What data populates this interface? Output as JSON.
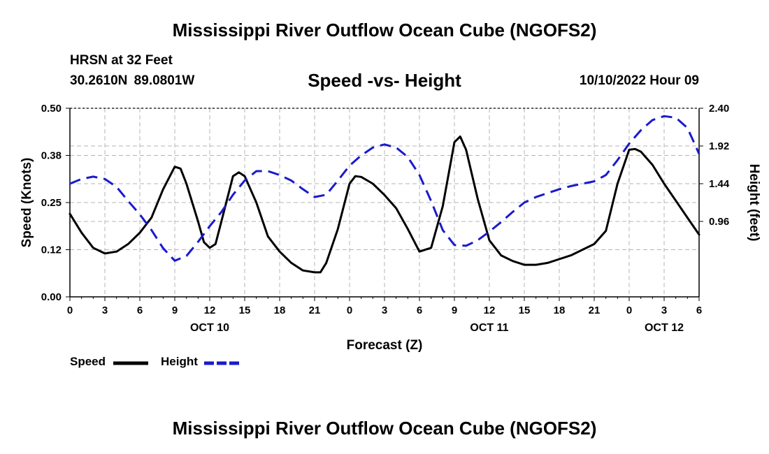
{
  "header": {
    "title": "Mississippi River Outflow Ocean Cube (NGOFS2)",
    "station": "HRSN at 32 Feet",
    "coords": "30.2610N  89.0801W",
    "subtitle": "Speed -vs- Height",
    "run_time": "10/10/2022 Hour 09"
  },
  "footer": {
    "title": "Mississippi River Outflow Ocean Cube (NGOFS2)"
  },
  "legend": {
    "speed": "Speed",
    "height": "Height"
  },
  "colors": {
    "speed": "#000000",
    "height": "#1a1acc",
    "grid": "#b4b4b4"
  },
  "chart_data": {
    "type": "line",
    "xlabel": "Forecast (Z)",
    "ylabel": "Speed (Knots)",
    "y2label": "Height (feet)",
    "xlim": [
      0,
      54
    ],
    "ylim": [
      0,
      0.5
    ],
    "y2lim": [
      0,
      2.4
    ],
    "x_ticks": [
      0,
      3,
      6,
      9,
      12,
      15,
      18,
      21,
      24,
      27,
      30,
      33,
      36,
      39,
      42,
      45,
      48,
      51,
      54
    ],
    "x_tick_labels": [
      "0",
      "3",
      "6",
      "9",
      "12",
      "15",
      "18",
      "21",
      "0",
      "3",
      "6",
      "9",
      "12",
      "15",
      "18",
      "21",
      "0",
      "3",
      "6"
    ],
    "y_ticks": [
      0,
      0.125,
      0.25,
      0.375,
      0.5
    ],
    "y_tick_labels": [
      "0.00",
      "0.12",
      "0.25",
      "0.38",
      "0.50"
    ],
    "y2_ticks": [
      0.96,
      1.44,
      1.92,
      2.4
    ],
    "y2_tick_labels": [
      "0.96",
      "1.44",
      "1.92",
      "2.40"
    ],
    "day_labels": [
      {
        "x": 12,
        "label": "OCT 10"
      },
      {
        "x": 36,
        "label": "OCT 11"
      },
      {
        "x": 51,
        "label": "OCT 12"
      }
    ],
    "series": [
      {
        "name": "Speed",
        "axis": "left",
        "style": "solid",
        "x": [
          0,
          1,
          2,
          3,
          4,
          5,
          6,
          7,
          8,
          9,
          9.5,
          10,
          11,
          11.5,
          12,
          12.5,
          13,
          14,
          14.5,
          15,
          16,
          17,
          18,
          19,
          20,
          21,
          21.5,
          22,
          23,
          24,
          24.5,
          25,
          26,
          27,
          28,
          29,
          30,
          31,
          32,
          33,
          33.5,
          34,
          35,
          36,
          37,
          38,
          39,
          40,
          41,
          42,
          43,
          44,
          45,
          46,
          47,
          48,
          48.5,
          49,
          50,
          51,
          52,
          53,
          54
        ],
        "values": [
          0.22,
          0.17,
          0.13,
          0.115,
          0.12,
          0.14,
          0.17,
          0.21,
          0.285,
          0.345,
          0.34,
          0.3,
          0.2,
          0.145,
          0.13,
          0.14,
          0.2,
          0.32,
          0.33,
          0.32,
          0.25,
          0.16,
          0.12,
          0.09,
          0.07,
          0.065,
          0.065,
          0.09,
          0.18,
          0.3,
          0.32,
          0.318,
          0.3,
          0.27,
          0.235,
          0.18,
          0.12,
          0.13,
          0.24,
          0.41,
          0.425,
          0.39,
          0.26,
          0.15,
          0.11,
          0.095,
          0.085,
          0.085,
          0.09,
          0.1,
          0.11,
          0.125,
          0.14,
          0.175,
          0.3,
          0.39,
          0.392,
          0.385,
          0.35,
          0.3,
          0.255,
          0.21,
          0.165
        ]
      },
      {
        "name": "Height",
        "axis": "right",
        "style": "dashed",
        "x": [
          0,
          1,
          2,
          3,
          4,
          5,
          6,
          7,
          8,
          9,
          10,
          11,
          12,
          13,
          14,
          15,
          16,
          17,
          18,
          19,
          20,
          21,
          22,
          23,
          24,
          25,
          26,
          27,
          28,
          29,
          30,
          31,
          32,
          33,
          34,
          35,
          36,
          37,
          38,
          39,
          40,
          41,
          42,
          43,
          44,
          45,
          46,
          47,
          48,
          49,
          50,
          51,
          52,
          53,
          54
        ],
        "values": [
          1.44,
          1.5,
          1.53,
          1.5,
          1.4,
          1.22,
          1.05,
          0.85,
          0.62,
          0.46,
          0.52,
          0.7,
          0.9,
          1.08,
          1.3,
          1.48,
          1.6,
          1.6,
          1.55,
          1.48,
          1.37,
          1.27,
          1.3,
          1.48,
          1.67,
          1.8,
          1.9,
          1.94,
          1.9,
          1.78,
          1.55,
          1.22,
          0.85,
          0.66,
          0.65,
          0.72,
          0.83,
          0.95,
          1.08,
          1.2,
          1.27,
          1.32,
          1.37,
          1.41,
          1.44,
          1.47,
          1.55,
          1.74,
          1.95,
          2.12,
          2.25,
          2.3,
          2.28,
          2.15,
          1.82
        ]
      }
    ]
  }
}
